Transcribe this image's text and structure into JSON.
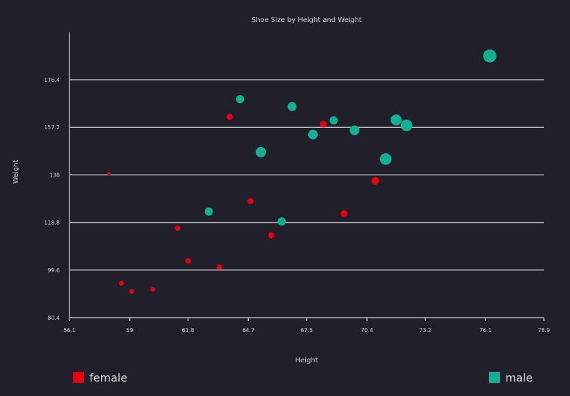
{
  "chart_data": {
    "type": "scatter",
    "title": "Shoe Size by Height and Weight",
    "xlabel": "Height",
    "ylabel": "Weight",
    "xlim": [
      56.1,
      78.9
    ],
    "ylim": [
      80.4,
      176.4
    ],
    "xticks": [
      "56.1",
      "59",
      "61.8",
      "64.7",
      "67.5",
      "70.4",
      "73.2",
      "76.1",
      "78.9"
    ],
    "yticks": [
      "80.4",
      "99.6",
      "118.8",
      "138",
      "157.2",
      "176.4"
    ],
    "grid": true,
    "size_encoding": "shoe size",
    "series": [
      {
        "name": "female",
        "color": "#e8000c",
        "points": [
          {
            "x": 58.0,
            "y": 138.5,
            "size": 5
          },
          {
            "x": 58.6,
            "y": 94.2,
            "size": 7
          },
          {
            "x": 59.1,
            "y": 91.0,
            "size": 7
          },
          {
            "x": 60.1,
            "y": 91.8,
            "size": 7
          },
          {
            "x": 61.3,
            "y": 116.5,
            "size": 8
          },
          {
            "x": 61.8,
            "y": 103.3,
            "size": 8
          },
          {
            "x": 63.3,
            "y": 100.8,
            "size": 8
          },
          {
            "x": 63.8,
            "y": 161.4,
            "size": 9
          },
          {
            "x": 64.8,
            "y": 127.4,
            "size": 9
          },
          {
            "x": 65.8,
            "y": 113.6,
            "size": 9
          },
          {
            "x": 68.3,
            "y": 158.5,
            "size": 10
          },
          {
            "x": 69.3,
            "y": 122.4,
            "size": 10
          },
          {
            "x": 70.8,
            "y": 135.6,
            "size": 11
          }
        ]
      },
      {
        "name": "male",
        "color": "#12b192",
        "points": [
          {
            "x": 62.8,
            "y": 123.2,
            "size": 12
          },
          {
            "x": 64.3,
            "y": 168.6,
            "size": 12
          },
          {
            "x": 65.3,
            "y": 147.2,
            "size": 15
          },
          {
            "x": 66.3,
            "y": 119.2,
            "size": 12
          },
          {
            "x": 66.8,
            "y": 165.6,
            "size": 13
          },
          {
            "x": 67.8,
            "y": 154.3,
            "size": 14
          },
          {
            "x": 68.8,
            "y": 160.0,
            "size": 12
          },
          {
            "x": 69.8,
            "y": 156.0,
            "size": 14
          },
          {
            "x": 71.3,
            "y": 144.4,
            "size": 17
          },
          {
            "x": 71.8,
            "y": 160.2,
            "size": 16
          },
          {
            "x": 72.3,
            "y": 158.0,
            "size": 17
          },
          {
            "x": 76.3,
            "y": 186.0,
            "size": 19
          }
        ]
      }
    ]
  }
}
